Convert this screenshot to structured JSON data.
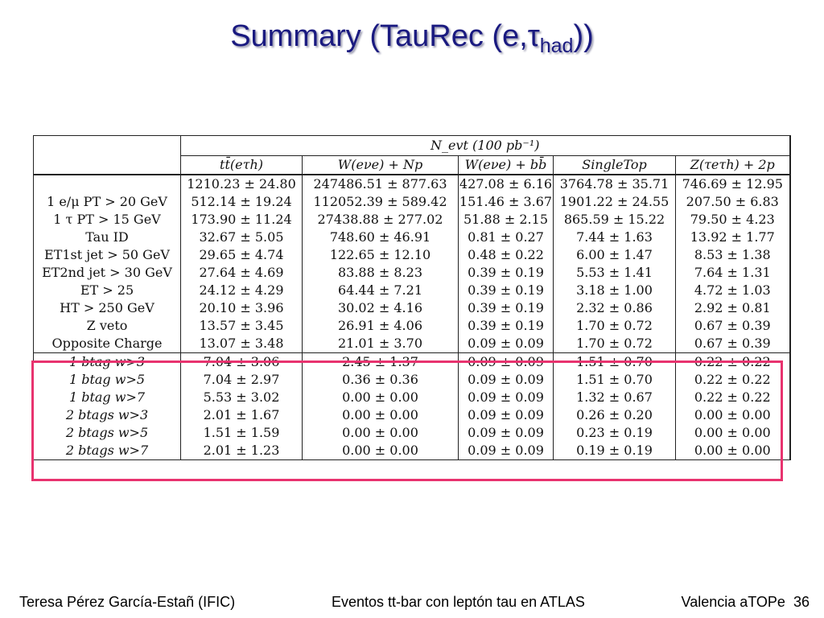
{
  "slide": {
    "title_main": "Summary (TauRec (e,τ",
    "title_sub": "had",
    "title_end": "))"
  },
  "table": {
    "header_top": "N_evt (100 pb⁻¹)",
    "columns": [
      "tt̄(eτh)",
      "W(eνe) + Np",
      "W(eνe) + bb̄",
      "SingleTop",
      "Z(τeτh) + 2p"
    ],
    "rows": [
      {
        "label": "",
        "values": [
          "1210.23 ± 24.80",
          "247486.51 ± 877.63",
          "427.08 ± 6.16",
          "3764.78 ± 35.71",
          "746.69 ± 12.95"
        ]
      },
      {
        "label": "1 e/μ PT > 20 GeV",
        "values": [
          "512.14 ± 19.24",
          "112052.39 ± 589.42",
          "151.46 ± 3.67",
          "1901.22 ± 24.55",
          "207.50 ± 6.83"
        ]
      },
      {
        "label": "1 τ PT > 15 GeV",
        "values": [
          "173.90 ± 11.24",
          "27438.88 ± 277.02",
          "51.88 ± 2.15",
          "865.59 ± 15.22",
          "79.50 ± 4.23"
        ]
      },
      {
        "label": "Tau ID",
        "values": [
          "32.67 ± 5.05",
          "748.60 ± 46.91",
          "0.81 ± 0.27",
          "7.44 ± 1.63",
          "13.92 ± 1.77"
        ]
      },
      {
        "label": "ET1st jet > 50 GeV",
        "values": [
          "29.65 ± 4.74",
          "122.65 ± 12.10",
          "0.48 ± 0.22",
          "6.00 ± 1.47",
          "8.53 ± 1.38"
        ]
      },
      {
        "label": "ET2nd jet > 30 GeV",
        "values": [
          "27.64 ± 4.69",
          "83.88 ± 8.23",
          "0.39 ± 0.19",
          "5.53 ± 1.41",
          "7.64 ± 1.31"
        ]
      },
      {
        "label": "ET > 25",
        "values": [
          "24.12 ± 4.29",
          "64.44 ± 7.21",
          "0.39 ± 0.19",
          "3.18 ± 1.00",
          "4.72 ± 1.03"
        ]
      },
      {
        "label": "HT > 250 GeV",
        "values": [
          "20.10 ± 3.96",
          "30.02 ± 4.16",
          "0.39 ± 0.19",
          "2.32 ± 0.86",
          "2.92 ± 0.81"
        ]
      },
      {
        "label": "Z veto",
        "values": [
          "13.57 ± 3.45",
          "26.91 ± 4.06",
          "0.39 ± 0.19",
          "1.70 ± 0.72",
          "0.67 ± 0.39"
        ]
      },
      {
        "label": "Opposite Charge",
        "values": [
          "13.07 ± 3.48",
          "21.01 ± 3.70",
          "0.09 ± 0.09",
          "1.70 ± 0.72",
          "0.67 ± 0.39"
        ]
      },
      {
        "label": "1 btag w>3",
        "values": [
          "7.04 ± 3.06",
          "2.45 ± 1.37",
          "0.09 ± 0.09",
          "1.51 ± 0.70",
          "0.22 ± 0.22"
        ]
      },
      {
        "label": "1 btag w>5",
        "values": [
          "7.04 ± 2.97",
          "0.36 ± 0.36",
          "0.09 ± 0.09",
          "1.51 ± 0.70",
          "0.22 ± 0.22"
        ]
      },
      {
        "label": "1 btag w>7",
        "values": [
          "5.53 ± 3.02",
          "0.00 ± 0.00",
          "0.09 ± 0.09",
          "1.32 ± 0.67",
          "0.22 ± 0.22"
        ]
      },
      {
        "label": "2 btags w>3",
        "values": [
          "2.01 ± 1.67",
          "0.00 ± 0.00",
          "0.09 ± 0.09",
          "0.26 ± 0.20",
          "0.00 ± 0.00"
        ]
      },
      {
        "label": "2 btags w>5",
        "values": [
          "1.51 ± 1.59",
          "0.00 ± 0.00",
          "0.09 ± 0.09",
          "0.23 ± 0.19",
          "0.00 ± 0.00"
        ]
      },
      {
        "label": "2 btags w>7",
        "values": [
          "2.01 ± 1.23",
          "0.00 ± 0.00",
          "0.09 ± 0.09",
          "0.19 ± 0.19",
          "0.00 ± 0.00"
        ]
      }
    ],
    "highlight_color": "#e8336f"
  },
  "footer": {
    "author": "Teresa Pérez García-Estañ (IFIC)",
    "talk_title": "Eventos tt-bar con leptón tau en ATLAS",
    "venue": "Valencia aTOPe",
    "page": "36"
  }
}
